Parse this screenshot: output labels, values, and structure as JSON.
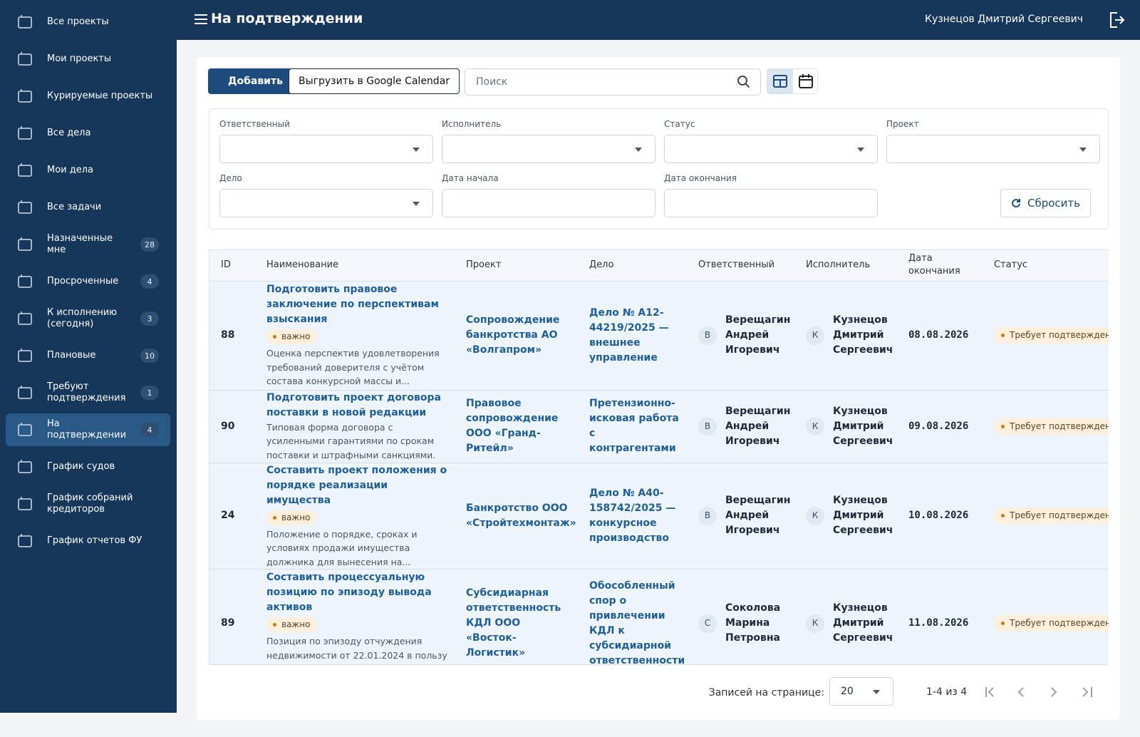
{
  "sidebar": {
    "items": [
      {
        "label": "Все проекты"
      },
      {
        "label": "Мои проекты"
      },
      {
        "label": "Курируемые проекты"
      },
      {
        "label": "Все дела"
      },
      {
        "label": "Мои дела"
      },
      {
        "label": "Все задачи"
      },
      {
        "label": "Назначенные мне",
        "count": 28
      },
      {
        "label": "Просроченные",
        "count": 4
      },
      {
        "label": "К исполнению (сегодня)",
        "count": 3
      },
      {
        "label": "Плановые",
        "count": 10
      },
      {
        "label": "Требуют подтверждения",
        "count": 1
      },
      {
        "label": "На подтверждении",
        "count": 4,
        "active": true
      },
      {
        "label": "График судов"
      },
      {
        "label": "График собраний кредиторов"
      },
      {
        "label": "График отчетов ФУ"
      }
    ]
  },
  "header": {
    "title": "На подтверждении",
    "user": "Кузнецов Дмитрий Сергеевич"
  },
  "toolbar": {
    "add": "Добавить",
    "export": "Выгрузить в Google Calendar",
    "search_placeholder": "Поиск"
  },
  "filters": {
    "labels": [
      "Ответственный",
      "Исполнитель",
      "Статус",
      "Проект",
      "Дело",
      "Дата начала",
      "Дата окончания"
    ],
    "reset": "Сбросить"
  },
  "table": {
    "columns": [
      "ID",
      "Наименование",
      "Проект",
      "Дело",
      "Ответственный",
      "Исполнитель",
      "Дата окончания",
      "Статус"
    ],
    "rows": [
      {
        "id": 88,
        "title": "Подготовить правовое заключение по перспективам взыскания",
        "tag": "важно",
        "desc": "Оценка перспектив удовлетворения требований доверителя с учётом состава конкурсной массы и...",
        "project": "Сопровождение банкротства АО «Волгапром»",
        "case": "Дело № А12-44219/2025 — внешнее управление",
        "resp_initial": "В",
        "resp": "Верещагин Андрей Игоревич",
        "exec_initial": "К",
        "exec": "Кузнецов Дмитрий Сергеевич",
        "date": "08.08.2026",
        "status": "Требует подтверждения"
      },
      {
        "id": 90,
        "title": "Подготовить проект договора поставки в новой редакции",
        "desc": "Типовая форма договора с усиленными гарантиями по срокам поставки и штрафными санкциями.",
        "project": "Правовое сопровождение ООО «Гранд-Ритейл»",
        "case": "Претензионно-исковая работа с контрагентами",
        "resp_initial": "В",
        "resp": "Верещагин Андрей Игоревич",
        "exec_initial": "К",
        "exec": "Кузнецов Дмитрий Сергеевич",
        "date": "09.08.2026",
        "status": "Требует подтверждения"
      },
      {
        "id": 24,
        "title": "Составить проект положения о порядке реализации имущества",
        "tag": "важно",
        "desc": "Положение о порядке, сроках и условиях продажи имущества должника для вынесения на...",
        "project": "Банкротство ООО «Стройтехмонтаж»",
        "case": "Дело № А40-158742/2025 — конкурсное производство",
        "resp_initial": "В",
        "resp": "Верещагин Андрей Игоревич",
        "exec_initial": "К",
        "exec": "Кузнецов Дмитрий Сергеевич",
        "date": "10.08.2026",
        "status": "Требует подтверждения"
      },
      {
        "id": 89,
        "title": "Составить процессуальную позицию по эпизоду вывода активов",
        "tag": "важно",
        "desc": "Позиция по эпизоду отчуждения недвижимости от 22.01.2024 в пользу аффилированного лица.",
        "project": "Субсидиарная ответственность КДЛ ООО «Восток-Логистик»",
        "case": "Обособленный спор о привлечении КДЛ к субсидиарной ответственности",
        "resp_initial": "С",
        "resp": "Соколова Марина Петровна",
        "exec_initial": "К",
        "exec": "Кузнецов Дмитрий Сергеевич",
        "date": "11.08.2026",
        "status": "Требует подтверждения"
      }
    ]
  },
  "pagination": {
    "per_page_label": "Записей на странице:",
    "per_page": 20,
    "range": "1-4 из 4"
  }
}
